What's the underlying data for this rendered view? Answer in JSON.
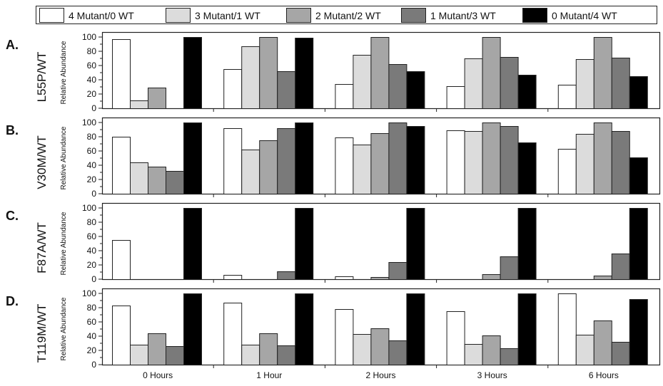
{
  "legend": {
    "items": [
      {
        "label": "4 Mutant/0 WT",
        "color": "#ffffff"
      },
      {
        "label": "3 Mutant/1 WT",
        "color": "#dcdcdc"
      },
      {
        "label": "2 Mutant/2 WT",
        "color": "#a6a6a6"
      },
      {
        "label": "1 Mutant/3 WT",
        "color": "#7a7a7a"
      },
      {
        "label": "0 Mutant/4 WT",
        "color": "#000000"
      }
    ]
  },
  "chart_data": [
    {
      "type": "bar",
      "panel_letter": "A.",
      "panel_name": "L55P/WT",
      "ylabel": "Relative Abundance",
      "ylim": [
        0,
        100
      ],
      "yticks": [
        "0",
        "20",
        "40",
        "60",
        "80",
        "100"
      ],
      "categories": [
        "0 Hours",
        "1 Hour",
        "2 Hours",
        "3 Hours",
        "6 Hours"
      ],
      "series": [
        {
          "name": "4 Mutant/0 WT",
          "values": [
            97,
            55,
            34,
            31,
            33
          ]
        },
        {
          "name": "3 Mutant/1 WT",
          "values": [
            11,
            87,
            75,
            70,
            69
          ]
        },
        {
          "name": "2 Mutant/2 WT",
          "values": [
            29,
            100,
            100,
            100,
            100
          ]
        },
        {
          "name": "1 Mutant/3 WT",
          "values": [
            0,
            52,
            62,
            72,
            71
          ]
        },
        {
          "name": "0 Mutant/4 WT",
          "values": [
            100,
            99,
            52,
            47,
            45
          ]
        }
      ]
    },
    {
      "type": "bar",
      "panel_letter": "B.",
      "panel_name": "V30M/WT",
      "ylabel": "Relative Abundance",
      "ylim": [
        0,
        100
      ],
      "yticks": [
        "0",
        "20",
        "40",
        "60",
        "80",
        "100"
      ],
      "categories": [
        "0 Hours",
        "1 Hour",
        "2 Hours",
        "3 Hours",
        "6 Hours"
      ],
      "series": [
        {
          "name": "4 Mutant/0 WT",
          "values": [
            80,
            92,
            79,
            89,
            63
          ]
        },
        {
          "name": "3 Mutant/1 WT",
          "values": [
            44,
            62,
            69,
            88,
            84
          ]
        },
        {
          "name": "2 Mutant/2 WT",
          "values": [
            38,
            75,
            85,
            100,
            100
          ]
        },
        {
          "name": "1 Mutant/3 WT",
          "values": [
            32,
            92,
            100,
            95,
            88
          ]
        },
        {
          "name": "0 Mutant/4 WT",
          "values": [
            100,
            100,
            95,
            72,
            51
          ]
        }
      ]
    },
    {
      "type": "bar",
      "panel_letter": "C.",
      "panel_name": "F87A/WT",
      "ylabel": "Relative Abundance",
      "ylim": [
        0,
        100
      ],
      "yticks": [
        "0",
        "20",
        "40",
        "60",
        "80",
        "100"
      ],
      "categories": [
        "0 Hours",
        "1 Hour",
        "2 Hours",
        "3 Hours",
        "6 Hours"
      ],
      "series": [
        {
          "name": "4 Mutant/0 WT",
          "values": [
            55,
            6,
            4,
            0,
            0
          ]
        },
        {
          "name": "3 Mutant/1 WT",
          "values": [
            0,
            0,
            0,
            0,
            0
          ]
        },
        {
          "name": "2 Mutant/2 WT",
          "values": [
            0,
            0,
            3,
            7,
            5
          ]
        },
        {
          "name": "1 Mutant/3 WT",
          "values": [
            0,
            11,
            24,
            32,
            36
          ]
        },
        {
          "name": "0 Mutant/4 WT",
          "values": [
            100,
            100,
            100,
            100,
            100
          ]
        }
      ]
    },
    {
      "type": "bar",
      "panel_letter": "D.",
      "panel_name": "T119M/WT",
      "ylabel": "Relative Abundance",
      "ylim": [
        0,
        100
      ],
      "yticks": [
        "0",
        "20",
        "40",
        "60",
        "80",
        "100"
      ],
      "categories": [
        "0 Hours",
        "1 Hour",
        "2 Hours",
        "3 Hours",
        "6 Hours"
      ],
      "series": [
        {
          "name": "4 Mutant/0 WT",
          "values": [
            83,
            87,
            78,
            75,
            100
          ]
        },
        {
          "name": "3 Mutant/1 WT",
          "values": [
            28,
            28,
            43,
            29,
            42
          ]
        },
        {
          "name": "2 Mutant/2 WT",
          "values": [
            44,
            44,
            51,
            41,
            62
          ]
        },
        {
          "name": "1 Mutant/3 WT",
          "values": [
            26,
            27,
            34,
            23,
            32
          ]
        },
        {
          "name": "0 Mutant/4 WT",
          "values": [
            100,
            100,
            100,
            100,
            92
          ]
        }
      ]
    }
  ]
}
